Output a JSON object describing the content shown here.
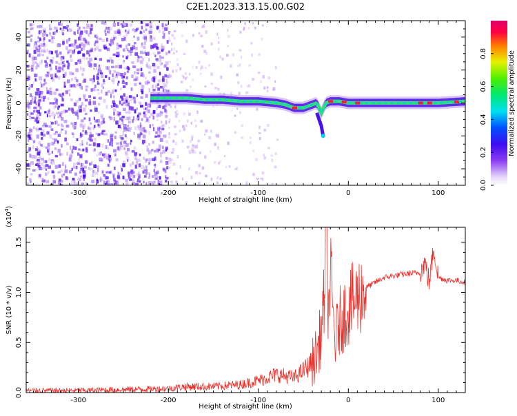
{
  "title": "C2E1.2023.313.15.00.G02",
  "colors": {
    "snr_line": "#e8302a",
    "ridge": "#2fe07a",
    "ridge_hot": "#f0203a",
    "scatter": "#7a3cf0",
    "scatter_dark": "#4a10e8",
    "scatter_light": "#c9a8f5"
  },
  "chart_data": [
    {
      "type": "heatmap",
      "name": "spectrogram",
      "xlabel": "Height of straight line (km)",
      "ylabel": "Frequency (Hz)",
      "xlim": [
        -358,
        130
      ],
      "ylim": [
        -50,
        50
      ],
      "xticks": [
        -300,
        -200,
        -100,
        0,
        100
      ],
      "xtick_labels": [
        "-300",
        "-200",
        "-100",
        "0",
        "100"
      ],
      "yticks": [
        -40,
        -20,
        0,
        20,
        40
      ],
      "ytick_labels": [
        "-40",
        "-20",
        "0",
        "20",
        "40"
      ],
      "colorbar": {
        "label": "Normalized spectral amplitude",
        "range": [
          0,
          1
        ],
        "ticks": [
          0.0,
          0.2,
          0.4,
          0.6,
          0.8
        ],
        "tick_labels": [
          "0.0",
          "0.2",
          "0.4",
          "0.6",
          "0.8"
        ]
      },
      "ridge": {
        "x": [
          -220,
          -200,
          -180,
          -160,
          -140,
          -120,
          -100,
          -80,
          -70,
          -60,
          -50,
          -40,
          -35,
          -30,
          -25,
          -20,
          -10,
          0,
          20,
          40,
          60,
          80,
          100,
          130
        ],
        "y": [
          3,
          3,
          3,
          2,
          2,
          1,
          1,
          0,
          -1,
          -3,
          -3,
          -1,
          0,
          -6,
          0,
          1,
          1,
          0,
          0,
          0,
          0,
          0,
          0,
          1
        ]
      },
      "drop_branch": {
        "x": [
          -35,
          -30,
          -28
        ],
        "y": [
          -6,
          -14,
          -20
        ]
      },
      "scatter_region": {
        "x": [
          -358,
          -200
        ],
        "y": [
          -50,
          50
        ]
      },
      "sparse_region": {
        "x": [
          -200,
          -80
        ],
        "y": [
          -50,
          50
        ]
      }
    },
    {
      "type": "line",
      "name": "snr",
      "xlabel": "Height of straight line (km)",
      "ylabel": "SNR (10 * v/v)",
      "scale_label": "(x10",
      "scale_exp": "4",
      "scale_close": ")",
      "xlim": [
        -358,
        130
      ],
      "ylim": [
        0,
        1.65
      ],
      "xticks": [
        -300,
        -200,
        -100,
        0,
        100
      ],
      "xtick_labels": [
        "-300",
        "-200",
        "-100",
        "0",
        "100"
      ],
      "yticks": [
        0,
        0.5,
        1.0,
        1.5
      ],
      "ytick_labels": [
        "0.0",
        "0.5",
        "1.0",
        "1.5"
      ],
      "series": [
        {
          "x": [
            -358,
            -300,
            -250,
            -200,
            -180,
            -150,
            -120,
            -100,
            -80,
            -60,
            -50,
            -40,
            -35,
            -30,
            -27,
            -25,
            -22,
            -20,
            -15,
            -10,
            0,
            10,
            20,
            30,
            40,
            60,
            80,
            85,
            90,
            95,
            100,
            110,
            120,
            130
          ],
          "y": [
            0.02,
            0.02,
            0.03,
            0.04,
            0.06,
            0.06,
            0.08,
            0.12,
            0.18,
            0.15,
            0.22,
            0.3,
            0.4,
            0.6,
            0.9,
            1.65,
            0.8,
            1.2,
            0.5,
            0.7,
            0.85,
            0.95,
            1.05,
            1.1,
            1.15,
            1.18,
            1.2,
            1.3,
            1.1,
            1.45,
            1.15,
            1.12,
            1.12,
            1.1
          ]
        }
      ]
    }
  ]
}
